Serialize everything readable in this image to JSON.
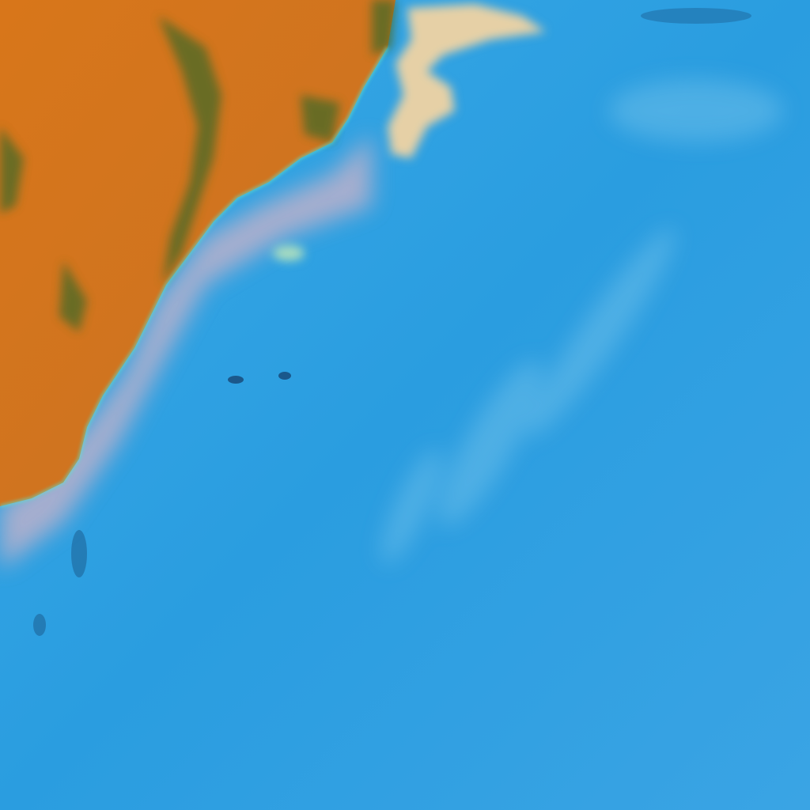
{
  "image": {
    "kind": "false-color satellite image",
    "colors": {
      "ocean": "#2a9de0",
      "ocean_light": "#45b2ea",
      "land": "#d2731c",
      "land_dark": "#b06018",
      "vegetation": "#4a6a2a",
      "coast_haze": "#e6b8b8",
      "cloud": "#e8d2a8",
      "cyan_edge": "#5fe0c8"
    }
  }
}
